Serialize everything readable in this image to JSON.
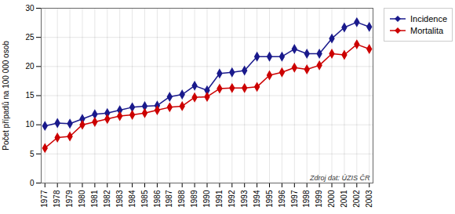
{
  "chart_data": {
    "type": "line",
    "x": [
      1977,
      1978,
      1979,
      1980,
      1981,
      1982,
      1983,
      1984,
      1985,
      1986,
      1987,
      1988,
      1989,
      1990,
      1991,
      1992,
      1993,
      1994,
      1995,
      1996,
      1997,
      1998,
      1999,
      2000,
      2001,
      2002,
      2003
    ],
    "series": [
      {
        "name": "Incidence",
        "color": "#1a1a8c",
        "marker": "diamond",
        "values": [
          9.8,
          10.3,
          10.2,
          11.0,
          11.8,
          12.0,
          12.5,
          13.0,
          13.2,
          13.3,
          14.8,
          15.2,
          16.7,
          15.9,
          18.8,
          19.0,
          19.3,
          21.7,
          21.7,
          21.7,
          23.0,
          22.2,
          22.2,
          24.8,
          26.7,
          27.6,
          26.8
        ]
      },
      {
        "name": "Mortalita",
        "color": "#cc0000",
        "marker": "diamond",
        "values": [
          6.0,
          7.8,
          8.0,
          10.0,
          10.5,
          11.0,
          11.5,
          11.7,
          12.0,
          12.5,
          13.0,
          13.2,
          14.7,
          14.8,
          16.2,
          16.3,
          16.3,
          16.5,
          18.5,
          19.0,
          19.8,
          19.5,
          20.2,
          22.2,
          22.0,
          23.8,
          23.0
        ]
      }
    ],
    "ylabel": "Počet případů na 100 000 osob",
    "xlim": [
      1976.7,
      2003.3
    ],
    "xticks": [
      1977,
      1978,
      1979,
      1980,
      1981,
      1982,
      1983,
      1984,
      1985,
      1986,
      1987,
      1988,
      1989,
      1990,
      1991,
      1992,
      1993,
      1994,
      1995,
      1996,
      1997,
      1998,
      1999,
      2000,
      2001,
      2002,
      2003
    ],
    "ylim": [
      0,
      30
    ],
    "yticks": [
      0,
      5,
      10,
      15,
      20,
      25,
      30
    ],
    "annotations": [
      "Zdroj dat: ÚZIS ČR"
    ],
    "grid": true,
    "legend": "upper right"
  }
}
